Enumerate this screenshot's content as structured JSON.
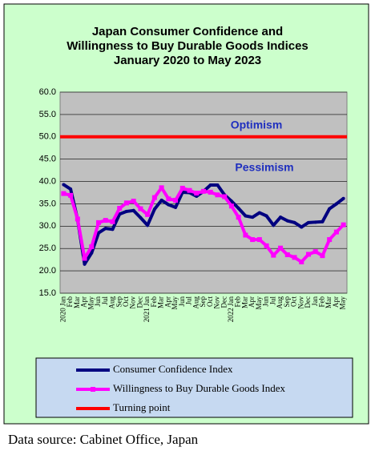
{
  "chart_data": {
    "type": "line",
    "title": [
      "Japan Consumer Confidence and",
      "Willingness to Buy Durable Goods Indices",
      "January 2020 to May 2023"
    ],
    "categories": [
      "2020 Jan",
      "Feb",
      "Mar",
      "Apr",
      "May",
      "Jun",
      "Jul",
      "Aug",
      "Sep",
      "Oct",
      "Nov",
      "Dec",
      "2021 Jan",
      "Feb",
      "Mar",
      "Apr",
      "May",
      "Jun",
      "Jul",
      "Aug",
      "Sep",
      "Oct",
      "Nov",
      "Dec",
      "2022 Jan",
      "Feb",
      "Mar",
      "Apr",
      "May",
      "Jun",
      "Jul",
      "Aug",
      "Sep",
      "Oct",
      "Nov",
      "Dec",
      "Jan",
      "Feb",
      "Mar",
      "Apr",
      "May"
    ],
    "series": [
      {
        "name": "Consumer Confidence Index",
        "color": "#000080",
        "values": [
          39.3,
          38.3,
          31.5,
          21.5,
          24.0,
          28.5,
          29.5,
          29.3,
          32.7,
          33.3,
          33.5,
          31.9,
          30.2,
          33.8,
          35.8,
          34.8,
          34.2,
          37.6,
          37.5,
          36.7,
          37.8,
          39.2,
          39.2,
          37.0,
          35.6,
          34.0,
          32.3,
          32.0,
          33.0,
          32.3,
          30.2,
          32.0,
          31.2,
          30.8,
          29.8,
          30.8,
          30.9,
          31.0,
          33.9,
          35.0,
          36.2
        ]
      },
      {
        "name": "Willingness to Buy Durable Goods Index",
        "color": "#ff00ff",
        "values": [
          37.3,
          36.9,
          31.6,
          22.8,
          25.4,
          30.8,
          31.3,
          31.0,
          34.0,
          35.2,
          35.6,
          33.9,
          32.6,
          36.4,
          38.6,
          36.1,
          35.8,
          38.5,
          38.0,
          37.4,
          37.8,
          37.6,
          37.0,
          36.6,
          34.5,
          32.0,
          28.0,
          27.0,
          27.0,
          25.6,
          23.5,
          25.1,
          23.6,
          23.0,
          22.0,
          23.7,
          24.3,
          23.4,
          27.0,
          28.7,
          30.3
        ]
      }
    ],
    "reference_line": {
      "name": "Turning point",
      "color": "#ff0000",
      "value": 50
    },
    "annotations": [
      "Optimism",
      "Pessimism"
    ],
    "ylim": [
      15,
      60
    ],
    "yticks": [
      {
        "value": 15,
        "label": "15.0"
      },
      {
        "value": 20,
        "label": "20.0"
      },
      {
        "value": 25,
        "label": "25.0"
      },
      {
        "value": 30,
        "label": "30.0"
      },
      {
        "value": 35,
        "label": "35.0"
      },
      {
        "value": 40,
        "label": "40.0"
      },
      {
        "value": 45,
        "label": "45.0"
      },
      {
        "value": 50,
        "label": "50.0"
      },
      {
        "value": 55,
        "label": "55.0"
      },
      {
        "value": 60,
        "label": "60.0"
      }
    ],
    "grid": true,
    "source": "Data source: Cabinet Office, Japan"
  }
}
